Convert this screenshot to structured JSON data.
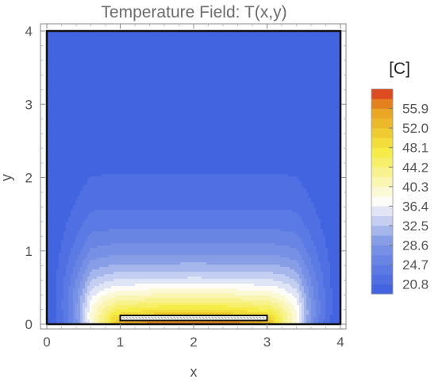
{
  "chart_data": {
    "type": "heatmap",
    "title": "Temperature Field: T(x,y)",
    "xlabel": "x",
    "ylabel": "y",
    "xlim": [
      0,
      4
    ],
    "ylim": [
      0,
      4
    ],
    "x_ticks": [
      "0",
      "1",
      "2",
      "3",
      "4"
    ],
    "y_ticks": [
      "0",
      "1",
      "2",
      "3",
      "4"
    ],
    "heater": {
      "x_range": [
        1,
        3
      ],
      "y_range": [
        0.05,
        0.12
      ]
    },
    "colorbar": {
      "title": "[C]",
      "range": [
        18.85,
        59.8
      ],
      "tick_labels": [
        "55.9",
        "52.0",
        "48.1",
        "44.2",
        "40.3",
        "36.4",
        "32.5",
        "28.6",
        "24.7",
        "20.8"
      ],
      "tick_values": [
        55.9,
        52.0,
        48.1,
        44.2,
        40.3,
        36.4,
        32.5,
        28.6,
        24.7,
        20.8
      ],
      "level_step": 1.95
    },
    "colors": {
      "cold": "#3d5fe0",
      "cool": "#7f98e6",
      "neutral": "#fdfcf9",
      "warm": "#f5eb40",
      "hot": "#e8a020",
      "hottest": "#d93020"
    }
  }
}
